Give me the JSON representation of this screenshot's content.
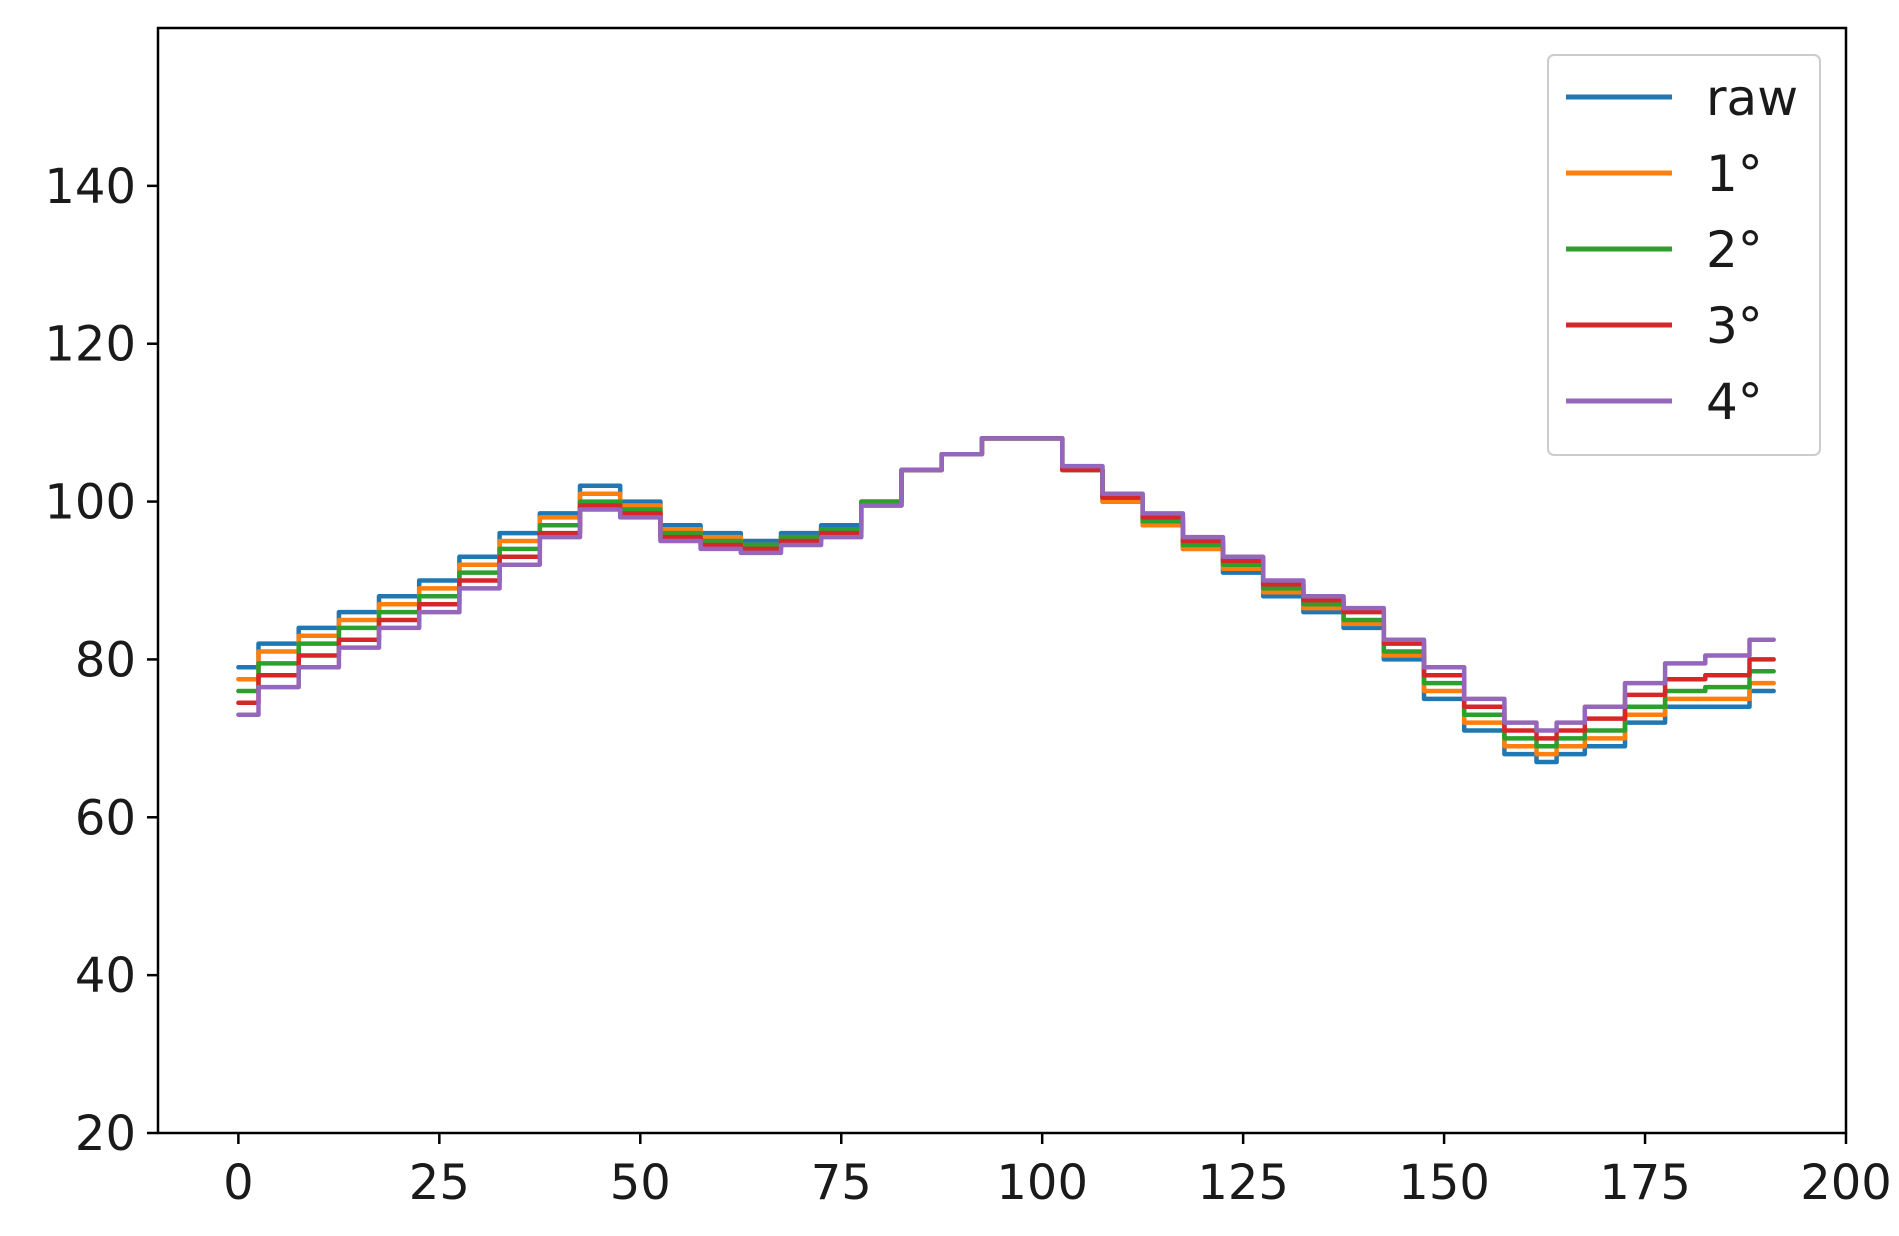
{
  "chart_data": {
    "type": "line",
    "title": "",
    "xlabel": "",
    "ylabel": "",
    "xlim": [
      -10,
      200
    ],
    "ylim": [
      20,
      160
    ],
    "xticks": [
      0,
      25,
      50,
      75,
      100,
      125,
      150,
      175,
      200
    ],
    "yticks": [
      20,
      40,
      60,
      80,
      100,
      120,
      140
    ],
    "grid": false,
    "legend_position": "top-right",
    "x": [
      0,
      5,
      10,
      15,
      20,
      25,
      30,
      35,
      40,
      45,
      50,
      55,
      60,
      65,
      70,
      75,
      80,
      85,
      90,
      95,
      100,
      105,
      110,
      115,
      120,
      125,
      130,
      135,
      140,
      145,
      150,
      155,
      160,
      163,
      165,
      170,
      175,
      180,
      185,
      191
    ],
    "series": [
      {
        "name": "raw",
        "color": "#1f77b4",
        "values": [
          79,
          82,
          84,
          86,
          88,
          90,
          93,
          96,
          98.5,
          102,
          100,
          97,
          96,
          95,
          96,
          97,
          100,
          104,
          106,
          108,
          108,
          104,
          100,
          97,
          94,
          91,
          88,
          86,
          84,
          80,
          75,
          71,
          68,
          67,
          68,
          69,
          72,
          74,
          74,
          76
        ]
      },
      {
        "name": "1°",
        "color": "#ff7f0e",
        "values": [
          77.5,
          81,
          83,
          85,
          87,
          89,
          92,
          95,
          98,
          101,
          99.5,
          96.5,
          95.5,
          94.5,
          95.5,
          96.5,
          100,
          104,
          106,
          108,
          108,
          104,
          100,
          97,
          94,
          91.5,
          88.5,
          86.5,
          84.5,
          80.5,
          76,
          72,
          69,
          68,
          69,
          70,
          73,
          75,
          75,
          77
        ]
      },
      {
        "name": "2°",
        "color": "#2ca02c",
        "values": [
          76,
          79.5,
          82,
          84,
          86,
          88,
          91,
          94,
          97,
          100,
          99,
          96,
          95,
          94.5,
          95.5,
          96.5,
          100,
          104,
          106,
          108,
          108,
          104,
          100.5,
          97.5,
          94.5,
          92,
          89,
          87,
          85,
          81,
          77,
          73,
          70,
          69,
          70,
          71,
          74,
          76,
          76.5,
          78.5
        ]
      },
      {
        "name": "3°",
        "color": "#d62728",
        "values": [
          74.5,
          78,
          80.5,
          82.5,
          85,
          87,
          90,
          93,
          96,
          99.5,
          98.5,
          95.5,
          94.5,
          94,
          95,
          96,
          99.5,
          104,
          106,
          108,
          108,
          104,
          100.5,
          98,
          95,
          92.5,
          89.5,
          87.5,
          86,
          82,
          78,
          74,
          71,
          70,
          71,
          72.5,
          75.5,
          77.5,
          78,
          80
        ]
      },
      {
        "name": "4°",
        "color": "#9467bd",
        "values": [
          73,
          76.5,
          79,
          81.5,
          84,
          86,
          89,
          92,
          95.5,
          99,
          98,
          95,
          94,
          93.5,
          94.5,
          95.5,
          99.5,
          104,
          106,
          108,
          108,
          104.5,
          101,
          98.5,
          95.5,
          93,
          90,
          88,
          86.5,
          82.5,
          79,
          75,
          72,
          71,
          72,
          74,
          77,
          79.5,
          80.5,
          82.5
        ]
      }
    ]
  }
}
